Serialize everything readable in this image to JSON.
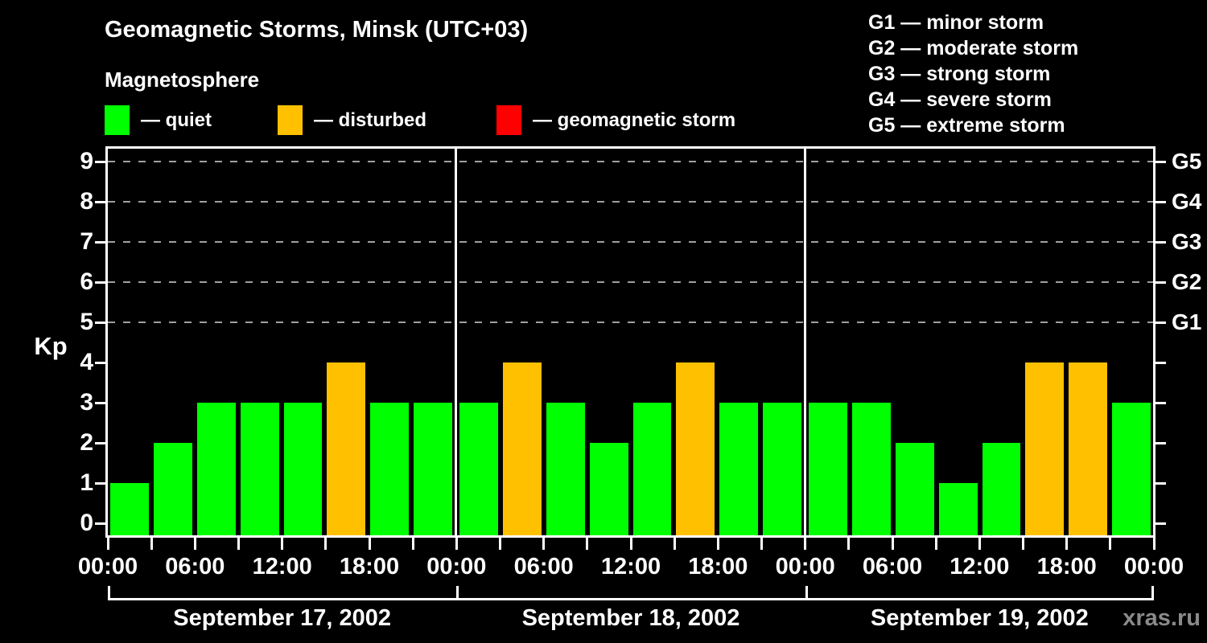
{
  "title": "Geomagnetic Storms, Minsk (UTC+03)",
  "subtitle": "Magnetosphere",
  "watermark": "xras.ru",
  "status_legend": {
    "items": [
      {
        "name": "quiet",
        "label": "— quiet",
        "color": "#00ff00"
      },
      {
        "name": "disturbed",
        "label": "— disturbed",
        "color": "#ffc000"
      },
      {
        "name": "geomagnetic-storm",
        "label": "— geomagnetic storm",
        "color": "#ff0000"
      }
    ]
  },
  "g_scale_legend": {
    "items": [
      "G1 — minor storm",
      "G2 — moderate storm",
      "G3 — strong storm",
      "G4 — severe storm",
      "G5 — extreme storm"
    ]
  },
  "y_axis": {
    "label": "Kp",
    "ticks": [
      0,
      1,
      2,
      3,
      4,
      5,
      6,
      7,
      8,
      9
    ],
    "gridline_levels": [
      5,
      6,
      7,
      8,
      9
    ]
  },
  "right_axis": {
    "labels": [
      {
        "text": "G1",
        "kp": 5
      },
      {
        "text": "G2",
        "kp": 6
      },
      {
        "text": "G3",
        "kp": 7
      },
      {
        "text": "G4",
        "kp": 8
      },
      {
        "text": "G5",
        "kp": 9
      }
    ]
  },
  "x_axis": {
    "time_label_cycle": [
      "00:00",
      "06:00",
      "12:00",
      "18:00"
    ],
    "hours_per_bar": 3
  },
  "chart_data": {
    "type": "bar",
    "title": "Geomagnetic Storms, Minsk (UTC+03)",
    "ylabel": "Kp",
    "ylim": [
      0,
      9
    ],
    "grid": "dashed horizontal lines at Kp 5,6,7,8,9 only",
    "legend_position": "top",
    "days": [
      {
        "date": "September 17, 2002",
        "values": [
          1,
          2,
          3,
          3,
          3,
          4,
          3,
          3
        ]
      },
      {
        "date": "September 18, 2002",
        "values": [
          3,
          4,
          3,
          2,
          3,
          4,
          3,
          3
        ]
      },
      {
        "date": "September 19, 2002",
        "values": [
          3,
          3,
          2,
          1,
          2,
          4,
          4,
          3
        ]
      }
    ],
    "colors": {
      "quiet": "#00ff00",
      "disturbed": "#ffc000",
      "storm": "#ff0000"
    },
    "color_rule": {
      "quiet_max_kp": 3,
      "disturbed_kp": 4,
      "storm_min_kp": 5
    }
  }
}
